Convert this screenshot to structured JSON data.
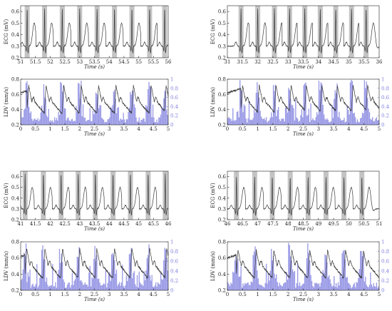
{
  "figure": {
    "background": "#ffffff",
    "colors": {
      "signal": "#3a3a3a",
      "ppg_bars": "#9a9ae6",
      "beat_band": "#c4c4c4",
      "right_axis": "#8080e0",
      "axis": "#222222"
    }
  },
  "chart_data": [
    {
      "id": "ecg-top-left",
      "type": "line",
      "xlabel": "Time (s)",
      "ylabel": "ECG (mV)",
      "xlim": [
        51,
        56
      ],
      "ylim": [
        0.2,
        0.65
      ],
      "xticks": [
        "51",
        "51.5",
        "52",
        "52.5",
        "53",
        "53.5",
        "54",
        "54.5",
        "55",
        "55.5",
        "56"
      ],
      "yticks": [
        "0.2",
        "0.3",
        "0.4",
        "0.5",
        "0.6"
      ],
      "beat_times": [
        51.22,
        51.81,
        52.41,
        53.0,
        53.59,
        54.18,
        54.77,
        55.37,
        55.88
      ],
      "r_peak_mV": 0.63,
      "t_wave_mV": 0.5,
      "baseline_mV": 0.3,
      "grid": false
    },
    {
      "id": "ldv-top-left",
      "type": "line",
      "xlabel": "Time (s)",
      "ylabel": "LDV (mm/s)",
      "xlim": [
        0,
        5
      ],
      "ylim": [
        0.2,
        0.8
      ],
      "xticks": [
        "0",
        "0.5",
        "1",
        "1.5",
        "2",
        "2.5",
        "3",
        "3.5",
        "4",
        "4.5",
        "5"
      ],
      "yticks": [
        "0.2",
        "0.4",
        "0.6",
        "0.8"
      ],
      "y2ticks": [
        "0",
        "0.2",
        "0.4",
        "0.6",
        "0.8",
        "1"
      ],
      "y2lim": [
        0,
        1
      ],
      "beat_times": [
        0.22,
        0.81,
        1.41,
        2.0,
        2.59,
        3.18,
        3.77,
        4.37,
        4.88
      ],
      "signal_peak": 0.72,
      "signal_trough": 0.36,
      "bar_series": "secondary axis (0–1)"
    },
    {
      "id": "ecg-top-right",
      "type": "line",
      "xlabel": "Time (s)",
      "ylabel": "ECG (mV)",
      "xlim": [
        31,
        36
      ],
      "ylim": [
        0.2,
        0.65
      ],
      "xticks": [
        "31",
        "31.5",
        "32",
        "32.5",
        "33",
        "33.5",
        "34",
        "34.5",
        "35",
        "35.5",
        "36"
      ],
      "yticks": [
        "0.2",
        "0.3",
        "0.4",
        "0.5",
        "0.6"
      ],
      "beat_times": [
        31.45,
        32.0,
        32.55,
        33.05,
        33.55,
        34.06,
        34.57,
        35.09,
        35.57
      ],
      "r_peak_mV": 0.63,
      "t_wave_mV": 0.5,
      "baseline_mV": 0.3,
      "grid": false
    },
    {
      "id": "ldv-top-right",
      "type": "line",
      "xlabel": "Time (s)",
      "ylabel": "LDV (mm/s)",
      "xlim": [
        0,
        5
      ],
      "ylim": [
        0.2,
        0.8
      ],
      "xticks": [
        "0",
        "0.5",
        "1",
        "1.5",
        "2",
        "2.5",
        "3",
        "3.5",
        "4",
        "4.5",
        "5"
      ],
      "yticks": [
        "0.2",
        "0.4",
        "0.6",
        "0.8"
      ],
      "y2ticks": [
        "0",
        "0.2",
        "0.4",
        "0.6",
        "0.8",
        "1"
      ],
      "y2lim": [
        0,
        1
      ],
      "beat_times": [
        0.45,
        1.0,
        1.55,
        2.05,
        2.55,
        3.06,
        3.57,
        4.09,
        4.57
      ],
      "signal_peak": 0.72,
      "signal_trough": 0.36,
      "bar_series": "secondary axis (0–1)"
    },
    {
      "id": "ecg-bottom-left",
      "type": "line",
      "xlabel": "Time (s)",
      "ylabel": "ECG (mV)",
      "xlim": [
        41,
        46
      ],
      "ylim": [
        0.2,
        0.65
      ],
      "xticks": [
        "41",
        "41.5",
        "42",
        "42.5",
        "43",
        "43.5",
        "44",
        "44.5",
        "45",
        "45.5",
        "46"
      ],
      "yticks": [
        "0.2",
        "0.3",
        "0.4",
        "0.5",
        "0.6"
      ],
      "beat_times": [
        41.15,
        41.77,
        42.37,
        42.95,
        43.53,
        44.13,
        44.72,
        45.32,
        45.9
      ],
      "r_peak_mV": 0.63,
      "t_wave_mV": 0.5,
      "baseline_mV": 0.3,
      "grid": false
    },
    {
      "id": "ldv-bottom-left",
      "type": "line",
      "xlabel": "Time (s)",
      "ylabel": "LDV (mm/s)",
      "xlim": [
        0,
        5
      ],
      "ylim": [
        0.2,
        0.8
      ],
      "xticks": [
        "0",
        "0.5",
        "1",
        "1.5",
        "2",
        "2.5",
        "3",
        "3.5",
        "4",
        "4.5",
        "5"
      ],
      "yticks": [
        "0.2",
        "0.4",
        "0.6",
        "0.8"
      ],
      "y2ticks": [
        "0",
        "0.2",
        "0.4",
        "0.6",
        "0.8",
        "1"
      ],
      "y2lim": [
        0,
        1
      ],
      "beat_times": [
        0.15,
        0.77,
        1.37,
        1.95,
        2.53,
        3.13,
        3.72,
        4.32,
        4.9
      ],
      "signal_peak": 0.72,
      "signal_trough": 0.36,
      "bar_series": "secondary axis (0–1)"
    },
    {
      "id": "ecg-bottom-right",
      "type": "line",
      "xlabel": "Time (s)",
      "ylabel": "ECG (mV)",
      "xlim": [
        46,
        51
      ],
      "ylim": [
        0.2,
        0.65
      ],
      "xticks": [
        "46",
        "46.5",
        "47",
        "47.5",
        "48",
        "48.5",
        "49",
        "49.5",
        "50",
        "50.5",
        "51"
      ],
      "yticks": [
        "0.2",
        "0.3",
        "0.4",
        "0.5",
        "0.6"
      ],
      "beat_times": [
        46.3,
        46.9,
        47.48,
        48.07,
        48.66,
        49.25,
        49.84,
        50.43
      ],
      "r_peak_mV": 0.6,
      "t_wave_mV": 0.5,
      "baseline_mV": 0.3,
      "grid": false
    },
    {
      "id": "ldv-bottom-right",
      "type": "line",
      "xlabel": "Time (s)",
      "ylabel": "LDV (mm/s)",
      "xlim": [
        0,
        5
      ],
      "ylim": [
        0.2,
        0.8
      ],
      "xticks": [
        "0",
        "0.5",
        "1",
        "1.5",
        "2",
        "2.5",
        "3",
        "3.5",
        "4",
        "4.5",
        "5"
      ],
      "yticks": [
        "0.2",
        "0.4",
        "0.6",
        "0.8"
      ],
      "y2ticks": [
        "0",
        "0.2",
        "0.4",
        "0.6",
        "0.8",
        "1"
      ],
      "y2lim": [
        0,
        1
      ],
      "beat_times": [
        0.3,
        0.9,
        1.48,
        2.07,
        2.66,
        3.25,
        3.84,
        4.43
      ],
      "signal_peak": 0.7,
      "signal_trough": 0.36,
      "bar_series": "secondary axis (0–1)"
    }
  ]
}
